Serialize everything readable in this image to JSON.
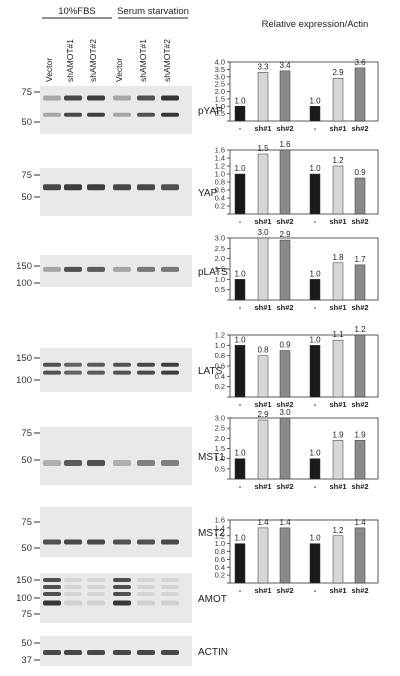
{
  "header": {
    "condition_left": "10%FBS",
    "condition_right": "Serum starvation",
    "right_title": "Relative expression/Actin"
  },
  "lanes": [
    "Vector",
    "shAMOT#1",
    "shAMOT#2",
    "Vector",
    "shAMOT#1",
    "shAMOT#2"
  ],
  "categories": [
    "-",
    "sh#1",
    "sh#2",
    "-",
    "sh#1",
    "sh#2"
  ],
  "colors": {
    "control": "#1a1a1a",
    "sh1": "#d6d6d6",
    "sh2": "#8a8a8a",
    "blot_bg": "#e9e9e9",
    "band": "#2b2b2b"
  },
  "blots": [
    {
      "protein": "pYAP",
      "markers": [
        "75",
        "50"
      ],
      "intensity": [
        0.35,
        0.85,
        0.9,
        0.35,
        0.8,
        0.95
      ]
    },
    {
      "protein": "YAP",
      "markers": [
        "75",
        "50"
      ],
      "intensity": [
        0.85,
        0.9,
        0.9,
        0.85,
        0.85,
        0.8
      ]
    },
    {
      "protein": "pLATS",
      "markers": [
        "150",
        "100"
      ],
      "intensity": [
        0.35,
        0.8,
        0.75,
        0.35,
        0.6,
        0.6
      ]
    },
    {
      "protein": "LATS",
      "markers": [
        "150",
        "100"
      ],
      "intensity": [
        0.8,
        0.7,
        0.75,
        0.8,
        0.85,
        0.9
      ]
    },
    {
      "protein": "MST1",
      "markers": [
        "75",
        "50"
      ],
      "intensity": [
        0.3,
        0.75,
        0.8,
        0.3,
        0.55,
        0.55
      ]
    },
    {
      "protein": "MST2",
      "markers": [
        "75",
        "50"
      ],
      "intensity": [
        0.8,
        0.85,
        0.85,
        0.8,
        0.8,
        0.85
      ]
    },
    {
      "protein": "AMOT",
      "markers": [
        "150",
        "100",
        "75"
      ],
      "intensity": [
        0.95,
        0.12,
        0.12,
        0.95,
        0.12,
        0.12
      ]
    },
    {
      "protein": "ACTIN",
      "markers": [
        "50",
        "37"
      ],
      "intensity": [
        0.85,
        0.85,
        0.85,
        0.85,
        0.85,
        0.85
      ]
    }
  ],
  "chart_data": [
    {
      "type": "bar",
      "protein": "pYAP",
      "categories": [
        "-",
        "sh#1",
        "sh#2",
        "-",
        "sh#1",
        "sh#2"
      ],
      "values": [
        1.0,
        3.3,
        3.4,
        1.0,
        2.9,
        3.6
      ],
      "labels": [
        "1.0",
        "3.3",
        "3.4",
        "1.0",
        "2.9",
        "3.6"
      ],
      "ylim": [
        0,
        4
      ],
      "yticks": [
        "0",
        "0.5",
        "1.0",
        "1.5",
        "2.0",
        "2.5",
        "3.0",
        "3.5",
        "4.0"
      ]
    },
    {
      "type": "bar",
      "protein": "YAP",
      "categories": [
        "-",
        "sh#1",
        "sh#2",
        "-",
        "sh#1",
        "sh#2"
      ],
      "values": [
        1.0,
        1.5,
        1.6,
        1.0,
        1.2,
        0.9
      ],
      "labels": [
        "1.0",
        "1.5",
        "1.6",
        "1.0",
        "1.2",
        "0.9"
      ],
      "ylim": [
        0,
        1.6
      ],
      "yticks": [
        "0",
        "0.2",
        "0.4",
        "0.6",
        "0.8",
        "1.0",
        "1.2",
        "1.4",
        "1.6"
      ]
    },
    {
      "type": "bar",
      "protein": "pLATS",
      "categories": [
        "-",
        "sh#1",
        "sh#2",
        "-",
        "sh#1",
        "sh#2"
      ],
      "values": [
        1.0,
        3.0,
        2.9,
        1.0,
        1.8,
        1.7
      ],
      "labels": [
        "1.0",
        "3.0",
        "2.9",
        "1.0",
        "1.8",
        "1.7"
      ],
      "ylim": [
        0,
        3
      ],
      "yticks": [
        "0",
        "0.5",
        "1.0",
        "1.5",
        "2.0",
        "2.5",
        "3.0"
      ]
    },
    {
      "type": "bar",
      "protein": "LATS",
      "categories": [
        "-",
        "sh#1",
        "sh#2",
        "-",
        "sh#1",
        "sh#2"
      ],
      "values": [
        1.0,
        0.8,
        0.9,
        1.0,
        1.1,
        1.2
      ],
      "labels": [
        "1.0",
        "0.8",
        "0.9",
        "1.0",
        "1.1",
        "1.2"
      ],
      "ylim": [
        0,
        1.2
      ],
      "yticks": [
        "0",
        "0.2",
        "0.4",
        "0.6",
        "0.8",
        "1.0",
        "1.2"
      ]
    },
    {
      "type": "bar",
      "protein": "MST1",
      "categories": [
        "-",
        "sh#1",
        "sh#2",
        "-",
        "sh#1",
        "sh#2"
      ],
      "values": [
        1.0,
        2.9,
        3.0,
        1.0,
        1.9,
        1.9
      ],
      "labels": [
        "1.0",
        "2.9",
        "3.0",
        "1.0",
        "1.9",
        "1.9"
      ],
      "ylim": [
        0,
        3
      ],
      "yticks": [
        "0",
        "0.5",
        "1.0",
        "1.5",
        "2.0",
        "2.5",
        "3.0"
      ]
    },
    {
      "type": "bar",
      "protein": "MST2",
      "categories": [
        "-",
        "sh#1",
        "sh#2",
        "-",
        "sh#1",
        "sh#2"
      ],
      "values": [
        1.0,
        1.4,
        1.4,
        1.0,
        1.2,
        1.4
      ],
      "labels": [
        "1.0",
        "1.4",
        "1.4",
        "1.0",
        "1.2",
        "1.4"
      ],
      "ylim": [
        0,
        1.6
      ],
      "yticks": [
        "0",
        "0.2",
        "0.4",
        "0.6",
        "0.8",
        "1.0",
        "1.2",
        "1.4",
        "1.6"
      ]
    }
  ]
}
